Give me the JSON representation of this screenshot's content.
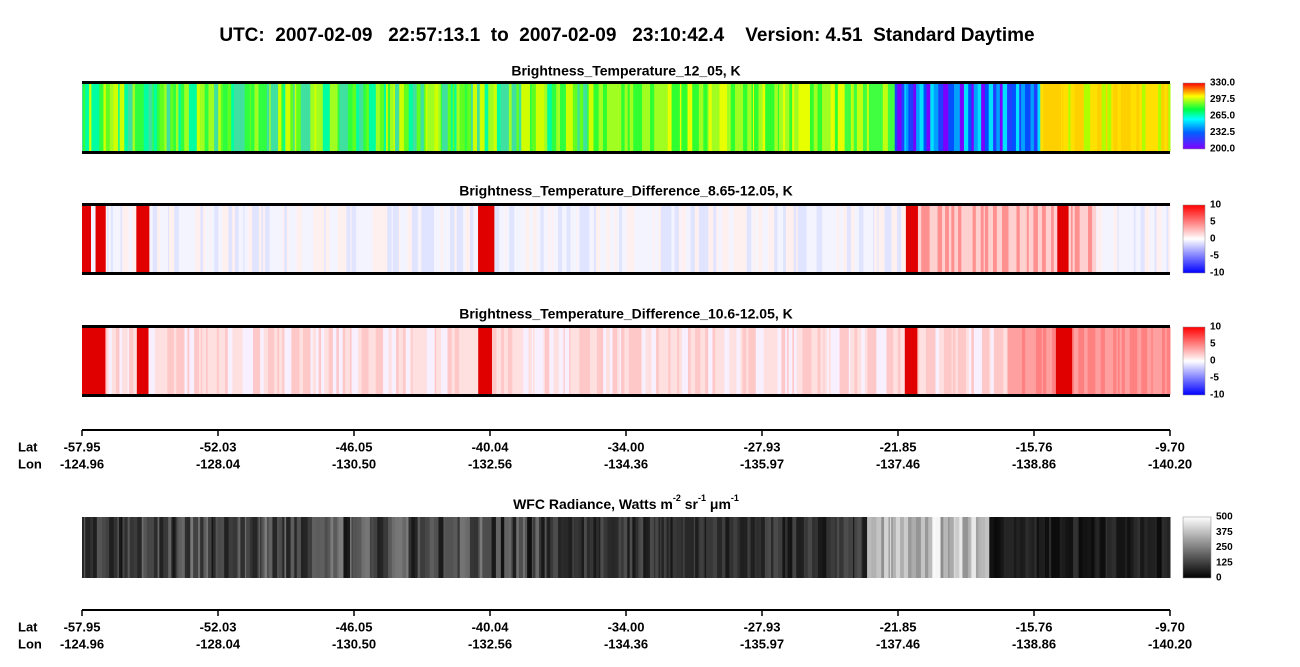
{
  "header": {
    "title": "UTC:  2007-02-09   22:57:13.1  to  2007-02-09   23:10:42.4    Version: 4.51  Standard Daytime"
  },
  "panels": [
    {
      "title": "Brightness_Temperature_12_05, K",
      "colorbar": [
        "330.0",
        "297.5",
        "265.0",
        "232.5",
        "200.0"
      ]
    },
    {
      "title": "Brightness_Temperature_Difference_8.65-12.05, K",
      "colorbar": [
        "10",
        "5",
        "0",
        "-5",
        "-10"
      ]
    },
    {
      "title": "Brightness_Temperature_Difference_10.6-12.05, K",
      "colorbar": [
        "10",
        "5",
        "0",
        "-5",
        "-10"
      ]
    },
    {
      "title_parts": [
        "WFC Radiance, Watts m",
        "-2",
        " sr",
        "-1",
        " μm",
        "-1"
      ],
      "colorbar": [
        "500",
        "375",
        "250",
        "125",
        "0"
      ]
    }
  ],
  "axes": [
    {
      "lat_label": "Lat",
      "lon_label": "Lon",
      "lat": [
        "-57.95",
        "-52.03",
        "-46.05",
        "-40.04",
        "-34.00",
        "-27.93",
        "-21.85",
        "-15.76",
        "-9.70"
      ],
      "lon": [
        "-124.96",
        "-128.04",
        "-130.50",
        "-132.56",
        "-134.36",
        "-135.97",
        "-137.46",
        "-138.86",
        "-140.20"
      ]
    },
    {
      "lat_label": "Lat",
      "lon_label": "Lon",
      "lat": [
        "-57.95",
        "-52.03",
        "-46.05",
        "-40.04",
        "-34.00",
        "-27.93",
        "-21.85",
        "-15.76",
        "-9.70"
      ],
      "lon": [
        "-124.96",
        "-128.04",
        "-130.50",
        "-132.56",
        "-134.36",
        "-135.97",
        "-137.46",
        "-138.86",
        "-140.20"
      ]
    }
  ]
}
